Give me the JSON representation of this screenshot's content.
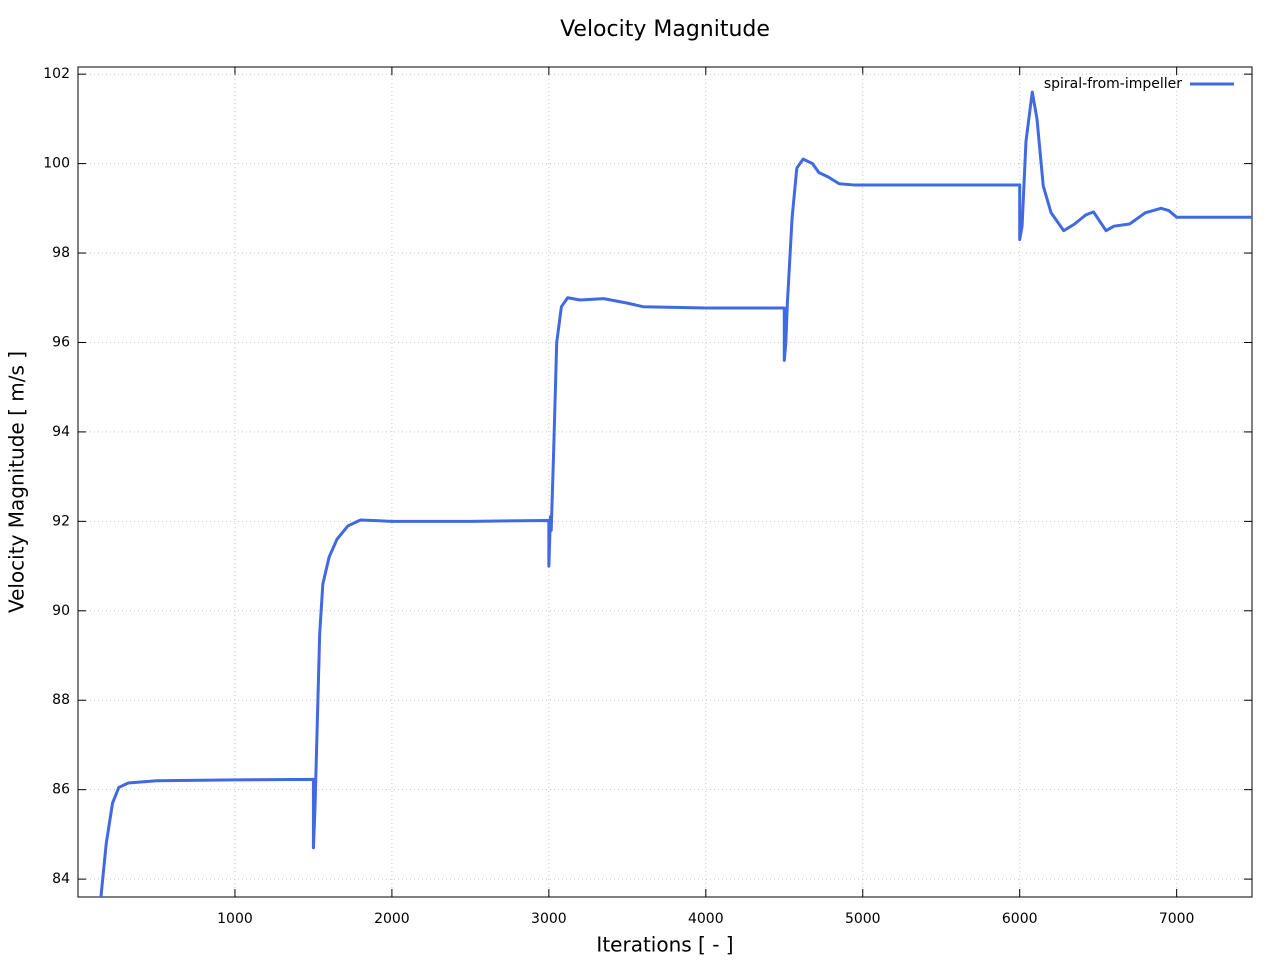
{
  "chart_data": {
    "type": "line",
    "title": "Velocity Magnitude",
    "x_label": "Iterations [ - ]",
    "y_label": "Velocity Magnitude [ m/s ]",
    "x": [
      146,
      180,
      220,
      260,
      320,
      500,
      1000,
      1500,
      1500,
      1510,
      1520,
      1540,
      1560,
      1600,
      1650,
      1720,
      1800,
      2000,
      2500,
      3000,
      3000,
      3010,
      3015,
      3030,
      3050,
      3080,
      3120,
      3200,
      3350,
      3500,
      3600,
      4000,
      4500,
      4500,
      4510,
      4520,
      4550,
      4580,
      4620,
      4680,
      4720,
      4780,
      4850,
      4950,
      5500,
      6000,
      6000,
      6015,
      6040,
      6080,
      6110,
      6150,
      6200,
      6280,
      6350,
      6420,
      6470,
      6550,
      6600,
      6700,
      6800,
      6900,
      6950,
      7000,
      7500
    ],
    "series": [
      {
        "name": "spiral-from-impeller",
        "color": "#4169e1",
        "values": [
          83.6,
          84.8,
          85.7,
          86.05,
          86.15,
          86.2,
          86.22,
          86.23,
          84.7,
          85.6,
          86.9,
          89.5,
          90.6,
          91.2,
          91.6,
          91.9,
          92.03,
          92.0,
          92.0,
          92.02,
          91.0,
          92.1,
          91.8,
          93.5,
          96.0,
          96.8,
          97.0,
          96.95,
          96.98,
          96.88,
          96.8,
          96.77,
          96.77,
          95.6,
          96.0,
          96.9,
          98.8,
          99.9,
          100.1,
          100.0,
          99.8,
          99.7,
          99.55,
          99.52,
          99.52,
          99.52,
          98.3,
          98.6,
          100.5,
          101.6,
          101.0,
          99.5,
          98.9,
          98.5,
          98.65,
          98.85,
          98.92,
          98.5,
          98.6,
          98.65,
          98.9,
          99.0,
          98.95,
          98.8,
          98.8
        ]
      }
    ],
    "xlim": [
      0,
      7480
    ],
    "ylim": [
      83.6,
      102.16
    ],
    "xticks": [
      1000,
      2000,
      3000,
      4000,
      5000,
      6000,
      7000
    ],
    "yticks": [
      84,
      86,
      88,
      90,
      92,
      94,
      96,
      98,
      100,
      102
    ],
    "grid": true,
    "legend": "top-right"
  }
}
